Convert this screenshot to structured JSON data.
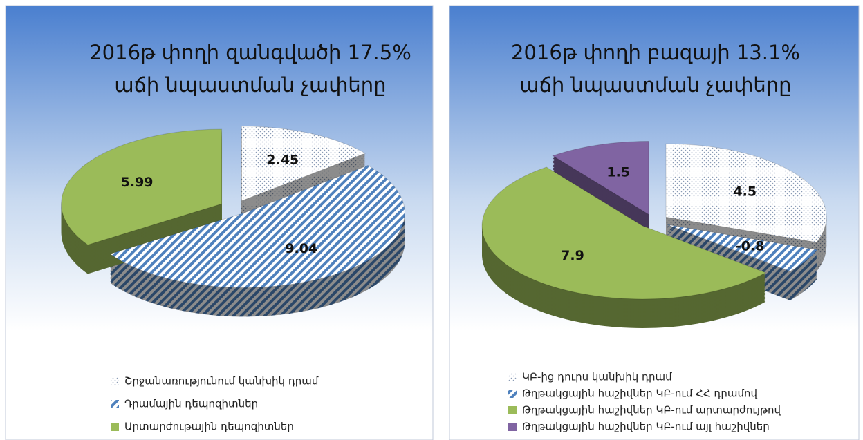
{
  "chart_data": [
    {
      "type": "pie",
      "title": [
        "2016թ փողի զանգվածի 17.5%",
        "աճի նպաստման չափերը"
      ],
      "categories": [
        "Շրջանառությունում կանխիկ դրամ",
        "Դրամային դեպոզիտներ",
        "Արտարժութային դեպոզիտներ"
      ],
      "values": [
        2.45,
        9.04,
        5.99
      ],
      "colors": [
        "#ffffff",
        "#4f81bd",
        "#9bbb59"
      ],
      "fills": [
        "dots",
        "stripes",
        "solid"
      ],
      "legend": "bottom"
    },
    {
      "type": "pie",
      "title": [
        "2016թ փողի բազայի 13.1%",
        "աճի նպաստման չափերը"
      ],
      "categories": [
        "ԿԲ-ից դուրս կանխիկ դրամ",
        "Թղթակցային հաշիվներ ԿԲ-ում ՀՀ դրամով",
        "Թղթակցային հաշիվներ ԿԲ-ում արտարժույթով",
        "Թղթակցային հաշիվներ ԿԲ-ում այլ հաշիվներ"
      ],
      "values": [
        4.5,
        -0.8,
        7.9,
        1.5
      ],
      "colors": [
        "#ffffff",
        "#4f81bd",
        "#9bbb59",
        "#8064a2"
      ],
      "fills": [
        "dots",
        "stripes",
        "solid",
        "solid"
      ],
      "legend": "bottom"
    }
  ]
}
